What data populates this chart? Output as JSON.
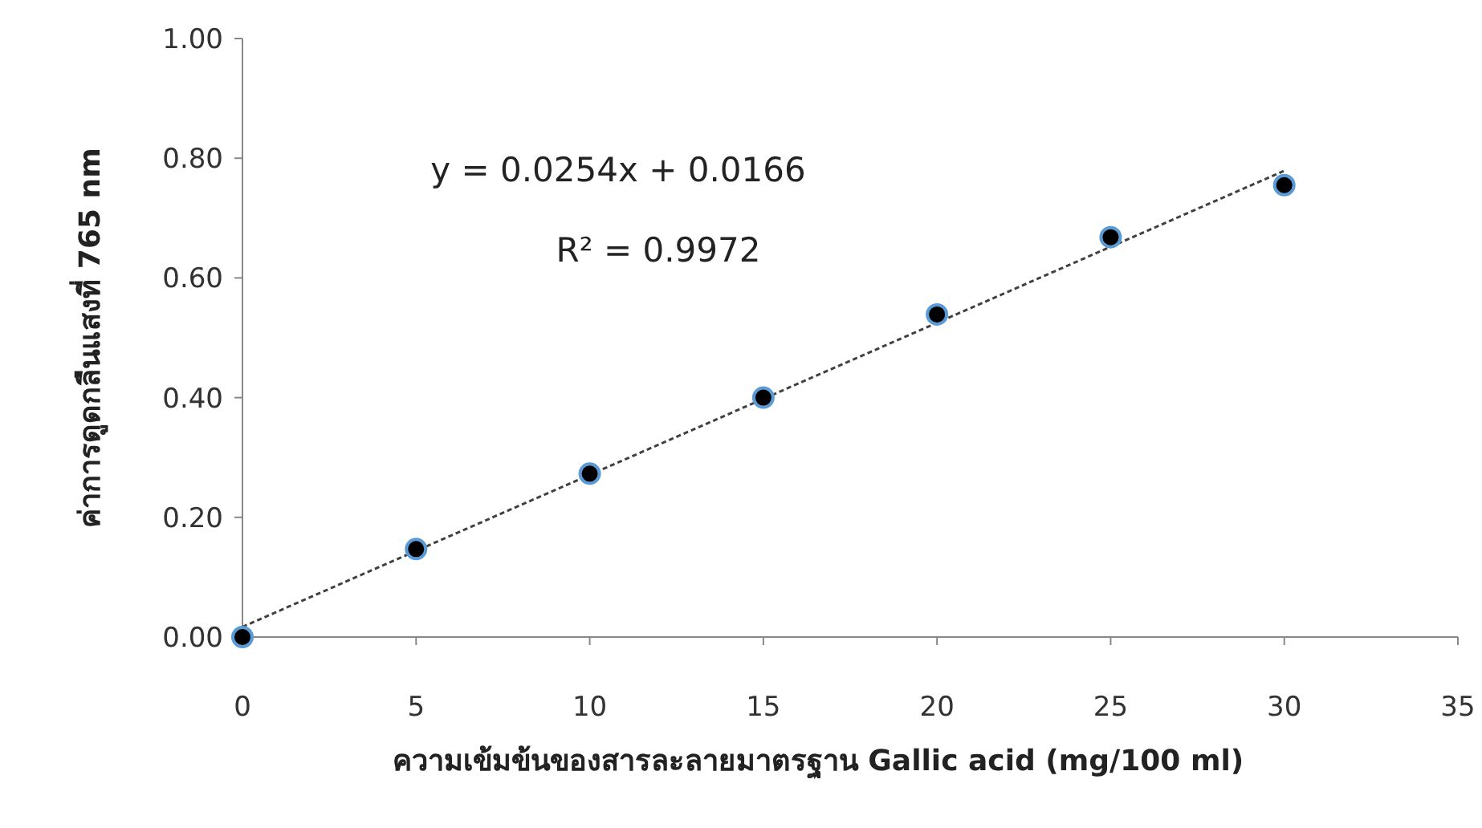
{
  "chart_data": {
    "type": "scatter",
    "xlabel": "ความเข้มข้นของสารละลายมาตรฐาน Gallic acid (mg/100 ml)",
    "ylabel": "ค่าการดูดกลืนแสงที่   765 nm",
    "x": [
      0,
      5,
      10,
      15,
      20,
      25,
      30
    ],
    "series": [
      {
        "color": "#000000",
        "marker": "circle",
        "values": [
          0.0,
          0.147,
          0.273,
          0.4,
          0.539,
          0.668,
          0.755
        ]
      },
      {
        "type": "line",
        "color": "#404040",
        "line_style": "dotted",
        "x": [
          0,
          30
        ],
        "values": [
          0.017,
          0.779
        ]
      }
    ],
    "xlim": [
      0,
      35
    ],
    "ylim": [
      0,
      1
    ],
    "xticks": [
      0,
      5,
      10,
      15,
      20,
      25,
      30,
      35
    ],
    "yticks": [
      {
        "value": 0,
        "label": "0.00"
      },
      {
        "value": 0.2,
        "label": "0.20"
      },
      {
        "value": 0.4,
        "label": "0.40"
      },
      {
        "value": 0.6,
        "label": "0.60"
      },
      {
        "value": 0.8,
        "label": "0.80"
      },
      {
        "value": 1,
        "label": "1.00"
      }
    ],
    "annotations": [
      "y = 0.0254x + 0.0166",
      "R² = 0.9972"
    ],
    "grid": false
  }
}
